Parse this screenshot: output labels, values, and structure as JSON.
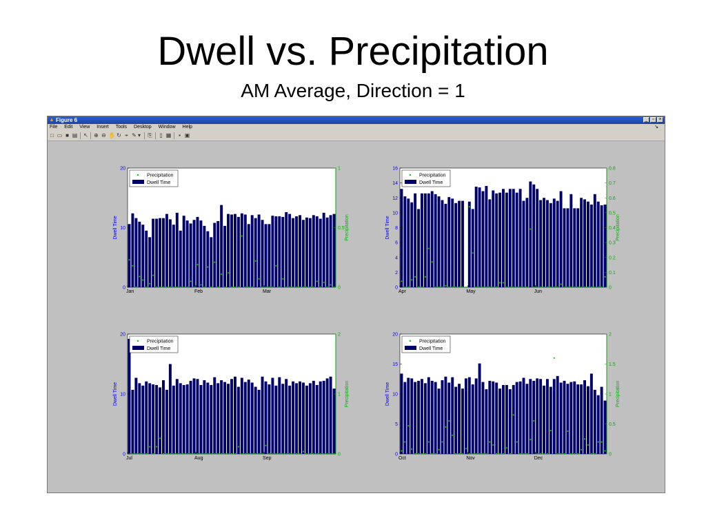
{
  "slide": {
    "title": "Dwell vs. Precipitation",
    "subtitle": "AM Average, Direction = 1"
  },
  "window": {
    "title": "Figure 6",
    "menu": [
      "File",
      "Edit",
      "View",
      "Insert",
      "Tools",
      "Desktop",
      "Window",
      "Help"
    ],
    "toolbar_icons": [
      "new-file-icon",
      "open-file-icon",
      "save-icon",
      "print-icon",
      "pointer-icon",
      "zoom-in-icon",
      "zoom-out-icon",
      "pan-icon",
      "rotate-icon",
      "data-cursor-icon",
      "brush-icon",
      "link-icon",
      "colorbar-icon",
      "legend-icon",
      "hide-plot-tools-icon",
      "show-plot-tools-icon"
    ]
  },
  "colors": {
    "bar": "#00006b",
    "dwell_axis": "#0000ff",
    "precip_axis": "#00b000",
    "precip_point": "#00cc00",
    "figure_bg": "#c0c0c0",
    "axes_bg": "#ffffff"
  },
  "chart_data": [
    {
      "type": "bar",
      "title": "",
      "ylabel": "Dwell Time",
      "ylabel_right": "Precipitation",
      "ylim": [
        0,
        20
      ],
      "yticks": [
        0,
        10,
        20
      ],
      "ylim_right": [
        0,
        1
      ],
      "yticks_right": [
        0,
        0.5,
        1
      ],
      "xtick_labels": [
        "Jan",
        "Feb",
        "Mar"
      ],
      "xtick_positions": [
        0,
        20,
        40
      ],
      "n_days": 61,
      "legend": [
        "Precipitation",
        "Dwell Time"
      ],
      "legend_position": "top-left",
      "series": [
        {
          "name": "Dwell Time",
          "type": "bar",
          "values": [
            10.6,
            12.4,
            11.6,
            11.0,
            10.5,
            9.5,
            8.4,
            11.5,
            11.5,
            11.6,
            11.6,
            12.3,
            11.4,
            10.5,
            12.5,
            9.5,
            12.0,
            11.2,
            10.7,
            11.3,
            11.8,
            11.2,
            10.3,
            9.4,
            8.4,
            10.8,
            11.1,
            13.8,
            10.3,
            12.3,
            12.2,
            12.3,
            11.8,
            12.4,
            12.2,
            10.6,
            12.1,
            11.6,
            12.2,
            11.3,
            10.6,
            10.6,
            12.0,
            11.9,
            11.9,
            11.8,
            12.6,
            12.3,
            11.6,
            11.9,
            12.1,
            11.3,
            11.7,
            11.6,
            12.1,
            11.9,
            11.5,
            12.5,
            11.7,
            12.1,
            12.3
          ]
        },
        {
          "name": "Precipitation",
          "type": "scatter",
          "values": [
            0.23,
            0.18,
            0.0,
            0.09,
            0.06,
            0.0,
            0.03,
            0.1,
            0.0,
            0.0,
            0.0,
            0.0,
            0.0,
            0.0,
            0.0,
            0.0,
            0.0,
            0.0,
            0.05,
            0.0,
            0.19,
            0.02,
            0.0,
            0.17,
            0.0,
            0.21,
            0.0,
            0.11,
            0.0,
            0.12,
            0.0,
            0.0,
            0.0,
            0.43,
            0.0,
            0.0,
            0.0,
            0.22,
            0.07,
            0.0,
            0.0,
            0.0,
            0.0,
            0.18,
            0.0,
            0.07,
            0.0,
            0.0,
            0.0,
            0.0,
            0.0,
            0.0,
            0.0,
            0.0,
            0.0,
            0.05,
            0.0,
            0.04,
            0.0,
            0.02,
            0.0
          ]
        }
      ]
    },
    {
      "type": "bar",
      "title": "",
      "ylabel": "Dwell Time",
      "ylabel_right": "Precipitation",
      "ylim": [
        0,
        16
      ],
      "yticks": [
        0,
        2,
        4,
        6,
        8,
        10,
        12,
        14,
        16
      ],
      "ylim_right": [
        0,
        0.8
      ],
      "yticks_right": [
        0,
        0.1,
        0.2,
        0.3,
        0.4,
        0.5,
        0.6,
        0.7,
        0.8
      ],
      "xtick_labels": [
        "Apr",
        "May",
        "Jun"
      ],
      "xtick_positions": [
        0,
        20,
        40
      ],
      "n_days": 61,
      "legend": [
        "Precipitation",
        "Dwell Time"
      ],
      "legend_position": "top-left",
      "series": [
        {
          "name": "Dwell Time",
          "type": "bar",
          "values": [
            13.2,
            12.2,
            11.9,
            11.4,
            12.6,
            10.5,
            12.6,
            12.6,
            12.6,
            12.9,
            12.5,
            12.2,
            11.7,
            11.2,
            12.1,
            11.9,
            11.3,
            11.6,
            11.6,
            0.0,
            11.5,
            10.5,
            13.5,
            13.4,
            12.9,
            13.6,
            11.8,
            13.0,
            12.6,
            12.7,
            13.2,
            12.7,
            13.2,
            13.2,
            12.7,
            13.2,
            11.6,
            12.0,
            14.2,
            13.8,
            13.2,
            11.7,
            12.0,
            11.7,
            11.3,
            11.9,
            11.6,
            12.9,
            10.6,
            10.6,
            12.5,
            10.6,
            10.6,
            12.0,
            11.8,
            11.5,
            11.1,
            12.5,
            11.5,
            11.0,
            11.1
          ]
        },
        {
          "name": "Precipitation",
          "type": "scatter",
          "values": [
            0.04,
            0.0,
            0.0,
            0.05,
            0.07,
            0.0,
            0.0,
            0.07,
            0.26,
            0.17,
            0.0,
            0.0,
            0.0,
            0.01,
            0.0,
            0.0,
            0.0,
            0.0,
            0.0,
            0.0,
            0.54,
            0.23,
            0.0,
            0.0,
            0.0,
            0.0,
            0.0,
            0.0,
            0.0,
            0.03,
            0.03,
            0.0,
            0.0,
            0.0,
            0.0,
            0.0,
            0.0,
            0.0,
            0.39,
            0.0,
            0.0,
            0.0,
            0.0,
            0.0,
            0.0,
            0.0,
            0.0,
            0.02,
            0.0,
            0.0,
            0.0,
            0.0,
            0.0,
            0.0,
            0.0,
            0.0,
            0.0,
            0.0,
            0.0,
            0.0,
            0.07
          ]
        }
      ]
    },
    {
      "type": "bar",
      "title": "",
      "ylabel": "Dwell Time",
      "ylabel_right": "Precipitation",
      "ylim": [
        0,
        20
      ],
      "yticks": [
        0,
        10,
        20
      ],
      "ylim_right": [
        0,
        2
      ],
      "yticks_right": [
        0,
        1,
        2
      ],
      "xtick_labels": [
        "Jul",
        "Aug",
        "Sep"
      ],
      "xtick_positions": [
        0,
        20,
        40
      ],
      "n_days": 61,
      "legend": [
        "Precipitation",
        "Dwell Time"
      ],
      "legend_position": "top-left",
      "series": [
        {
          "name": "Dwell Time",
          "type": "bar",
          "values": [
            19.2,
            10.7,
            12.7,
            11.8,
            11.4,
            12.1,
            11.8,
            11.6,
            11.5,
            11.1,
            12.3,
            10.7,
            15.0,
            11.4,
            12.5,
            11.8,
            11.5,
            11.6,
            12.2,
            12.6,
            12.5,
            11.5,
            12.3,
            11.9,
            11.5,
            12.8,
            11.8,
            12.3,
            12.0,
            11.7,
            12.5,
            12.9,
            11.2,
            12.7,
            12.0,
            12.4,
            11.9,
            11.2,
            10.7,
            12.9,
            12.1,
            11.6,
            12.7,
            11.4,
            12.8,
            11.7,
            12.5,
            11.4,
            12.1,
            11.8,
            12.1,
            11.9,
            11.4,
            11.8,
            12.2,
            11.5,
            12.1,
            12.2,
            12.6,
            12.9,
            10.9
          ]
        },
        {
          "name": "Precipitation",
          "type": "scatter",
          "values": [
            0.0,
            0.0,
            0.0,
            0.0,
            0.0,
            0.0,
            0.12,
            0.0,
            0.12,
            0.26,
            0.0,
            0.0,
            0.0,
            0.0,
            0.0,
            0.0,
            0.0,
            0.0,
            0.0,
            0.0,
            0.0,
            0.0,
            0.0,
            0.0,
            0.0,
            0.0,
            0.0,
            0.0,
            0.0,
            0.0,
            0.0,
            0.0,
            0.12,
            0.0,
            0.0,
            0.0,
            0.0,
            0.0,
            0.0,
            0.0,
            0.14,
            0.0,
            0.0,
            0.0,
            0.0,
            0.0,
            0.0,
            0.0,
            0.0,
            0.0,
            0.0,
            0.04,
            0.0,
            0.0,
            0.0,
            0.0,
            0.0,
            0.0,
            0.0,
            0.0,
            0.0
          ]
        }
      ]
    },
    {
      "type": "bar",
      "title": "",
      "ylabel": "Dwell Time",
      "ylabel_right": "Precipitation",
      "ylim": [
        0,
        20
      ],
      "yticks": [
        0,
        5,
        10,
        15,
        20
      ],
      "ylim_right": [
        0,
        2
      ],
      "yticks_right": [
        0,
        0.5,
        1,
        1.5,
        2
      ],
      "xtick_labels": [
        "Oct",
        "Nov",
        "Dec"
      ],
      "xtick_positions": [
        0,
        20,
        40
      ],
      "n_days": 61,
      "legend": [
        "Precipitation",
        "Dwell Time"
      ],
      "legend_position": "top-left",
      "series": [
        {
          "name": "Dwell Time",
          "type": "bar",
          "values": [
            13.4,
            12.0,
            12.7,
            12.6,
            12.0,
            12.2,
            12.5,
            11.8,
            12.8,
            12.2,
            12.0,
            10.9,
            12.3,
            12.9,
            11.9,
            12.8,
            11.2,
            11.7,
            10.9,
            12.6,
            12.8,
            11.6,
            12.6,
            15.1,
            12.0,
            10.8,
            12.2,
            12.1,
            11.9,
            10.9,
            11.5,
            11.5,
            10.8,
            11.5,
            12.0,
            12.1,
            12.7,
            11.7,
            12.5,
            12.2,
            12.6,
            12.5,
            11.4,
            12.5,
            11.2,
            12.5,
            13.0,
            11.9,
            12.2,
            11.7,
            12.0,
            12.1,
            11.6,
            11.6,
            12.3,
            11.3,
            13.4,
            10.7,
            9.8,
            11.2,
            8.9
          ]
        },
        {
          "name": "Precipitation",
          "type": "scatter",
          "values": [
            0.05,
            0.2,
            0.47,
            0.08,
            0.0,
            0.0,
            0.0,
            0.0,
            0.2,
            0.0,
            0.0,
            0.07,
            0.2,
            0.45,
            0.55,
            0.31,
            0.0,
            0.0,
            0.0,
            0.09,
            0.0,
            0.0,
            0.0,
            0.0,
            0.0,
            0.0,
            0.2,
            0.15,
            0.0,
            0.0,
            0.0,
            0.1,
            0.0,
            0.65,
            0.2,
            0.0,
            0.0,
            0.0,
            0.24,
            0.55,
            0.0,
            0.0,
            0.0,
            0.0,
            0.39,
            1.6,
            0.0,
            0.0,
            0.0,
            0.38,
            0.0,
            0.0,
            0.0,
            0.07,
            0.25,
            0.15,
            0.0,
            0.0,
            0.2,
            0.2,
            0.05
          ]
        }
      ]
    }
  ]
}
